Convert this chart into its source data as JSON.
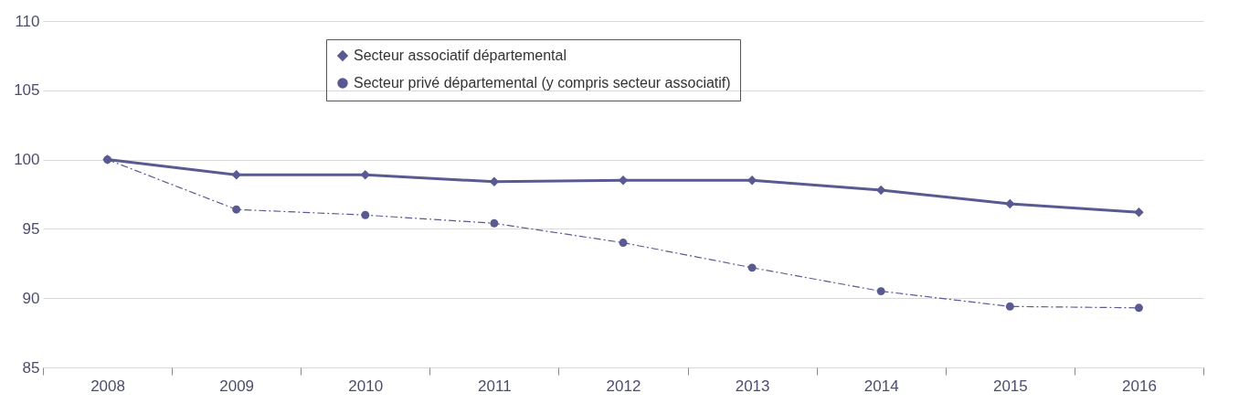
{
  "chart_data": {
    "type": "line",
    "categories": [
      "2008",
      "2009",
      "2010",
      "2011",
      "2012",
      "2013",
      "2014",
      "2015",
      "2016"
    ],
    "series": [
      {
        "name": "Secteur associatif départemental",
        "color": "#5a5a92",
        "marker": "diamond",
        "line_style": "solid",
        "values": [
          100,
          98.9,
          98.9,
          98.4,
          98.5,
          98.5,
          97.8,
          96.8,
          96.2
        ]
      },
      {
        "name": "Secteur privé départemental (y compris secteur associatif)",
        "color": "#5a5a92",
        "marker": "circle",
        "line_style": "dashed",
        "values": [
          100,
          96.4,
          96.0,
          95.4,
          94.0,
          92.2,
          90.5,
          89.4,
          89.3
        ]
      }
    ],
    "ylim": [
      85,
      110
    ],
    "yticks": [
      85,
      90,
      95,
      100,
      105,
      110
    ],
    "grid": "y",
    "legend": "top"
  }
}
